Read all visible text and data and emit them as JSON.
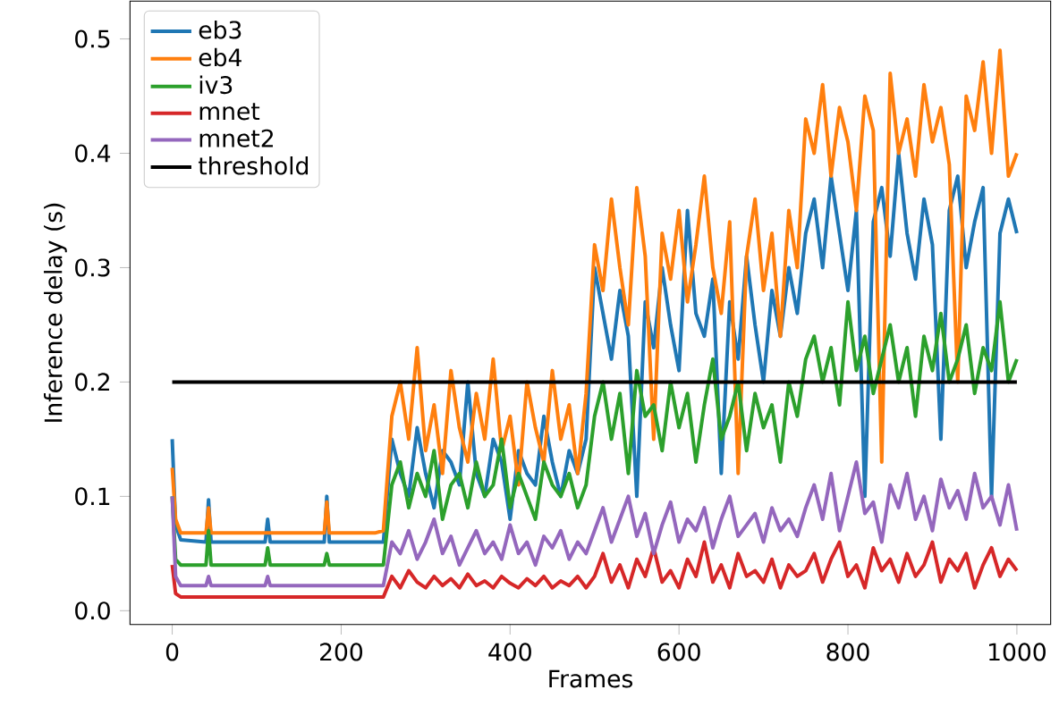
{
  "chart_data": {
    "type": "line",
    "xlabel": "Frames",
    "ylabel": "Inference delay (s)",
    "xlim": [
      -50,
      1040
    ],
    "ylim": [
      -0.012,
      0.533
    ],
    "xticks": [
      0,
      200,
      400,
      600,
      800,
      1000
    ],
    "yticks": [
      {
        "value": 0,
        "label": "0.0"
      },
      {
        "value": 0.1,
        "label": "0.1"
      },
      {
        "value": 0.2,
        "label": "0.2"
      },
      {
        "value": 0.3,
        "label": "0.3"
      },
      {
        "value": 0.4,
        "label": "0.4"
      },
      {
        "value": 0.5,
        "label": "0.5"
      }
    ],
    "legend": "top left",
    "grid": false,
    "line_style": "solid",
    "marker": "none",
    "x": [
      0,
      4,
      10,
      40,
      43,
      46,
      110,
      113,
      116,
      180,
      183,
      186,
      240,
      250,
      260,
      270,
      280,
      290,
      300,
      310,
      320,
      330,
      340,
      350,
      360,
      370,
      380,
      390,
      400,
      410,
      420,
      430,
      440,
      450,
      460,
      470,
      480,
      490,
      500,
      510,
      520,
      530,
      540,
      550,
      560,
      570,
      580,
      590,
      600,
      610,
      620,
      630,
      640,
      650,
      660,
      670,
      680,
      690,
      700,
      710,
      720,
      730,
      740,
      750,
      760,
      770,
      780,
      790,
      800,
      810,
      820,
      830,
      840,
      850,
      860,
      870,
      880,
      890,
      900,
      910,
      920,
      930,
      940,
      950,
      960,
      970,
      980,
      990,
      1000
    ],
    "series": [
      {
        "name": "eb3",
        "color": "#1f77b4",
        "values": [
          0.15,
          0.075,
          0.062,
          0.06,
          0.097,
          0.06,
          0.06,
          0.08,
          0.06,
          0.06,
          0.1,
          0.06,
          0.06,
          0.06,
          0.15,
          0.12,
          0.1,
          0.16,
          0.12,
          0.09,
          0.14,
          0.13,
          0.11,
          0.2,
          0.12,
          0.1,
          0.15,
          0.13,
          0.08,
          0.14,
          0.12,
          0.11,
          0.17,
          0.13,
          0.1,
          0.14,
          0.12,
          0.15,
          0.3,
          0.26,
          0.22,
          0.28,
          0.24,
          0.1,
          0.27,
          0.23,
          0.3,
          0.25,
          0.21,
          0.35,
          0.26,
          0.24,
          0.29,
          0.12,
          0.27,
          0.22,
          0.31,
          0.25,
          0.2,
          0.28,
          0.24,
          0.3,
          0.26,
          0.33,
          0.36,
          0.3,
          0.38,
          0.33,
          0.28,
          0.35,
          0.1,
          0.34,
          0.37,
          0.31,
          0.4,
          0.33,
          0.29,
          0.36,
          0.32,
          0.15,
          0.35,
          0.38,
          0.3,
          0.34,
          0.37,
          0.1,
          0.33,
          0.36,
          0.33
        ]
      },
      {
        "name": "eb4",
        "color": "#ff7f0e",
        "values": [
          0.125,
          0.08,
          0.068,
          0.068,
          0.09,
          0.068,
          0.068,
          0.068,
          0.068,
          0.068,
          0.095,
          0.068,
          0.068,
          0.07,
          0.17,
          0.2,
          0.15,
          0.23,
          0.14,
          0.18,
          0.12,
          0.21,
          0.16,
          0.13,
          0.19,
          0.15,
          0.22,
          0.14,
          0.17,
          0.11,
          0.2,
          0.16,
          0.13,
          0.21,
          0.15,
          0.18,
          0.12,
          0.19,
          0.32,
          0.28,
          0.36,
          0.3,
          0.25,
          0.37,
          0.31,
          0.15,
          0.33,
          0.29,
          0.35,
          0.27,
          0.32,
          0.38,
          0.3,
          0.26,
          0.34,
          0.12,
          0.31,
          0.36,
          0.28,
          0.33,
          0.24,
          0.35,
          0.3,
          0.43,
          0.4,
          0.46,
          0.38,
          0.44,
          0.41,
          0.35,
          0.45,
          0.42,
          0.13,
          0.47,
          0.4,
          0.43,
          0.38,
          0.46,
          0.41,
          0.44,
          0.39,
          0.2,
          0.45,
          0.42,
          0.48,
          0.4,
          0.49,
          0.38,
          0.4
        ]
      },
      {
        "name": "iv3",
        "color": "#2ca02c",
        "values": [
          0.1,
          0.045,
          0.04,
          0.04,
          0.07,
          0.04,
          0.04,
          0.055,
          0.04,
          0.04,
          0.05,
          0.04,
          0.04,
          0.04,
          0.11,
          0.13,
          0.09,
          0.12,
          0.1,
          0.14,
          0.08,
          0.11,
          0.12,
          0.09,
          0.13,
          0.1,
          0.11,
          0.15,
          0.09,
          0.12,
          0.1,
          0.08,
          0.13,
          0.11,
          0.1,
          0.12,
          0.09,
          0.11,
          0.17,
          0.2,
          0.15,
          0.19,
          0.12,
          0.21,
          0.17,
          0.18,
          0.14,
          0.2,
          0.16,
          0.19,
          0.13,
          0.18,
          0.22,
          0.15,
          0.17,
          0.2,
          0.14,
          0.19,
          0.16,
          0.18,
          0.13,
          0.2,
          0.17,
          0.22,
          0.24,
          0.2,
          0.23,
          0.18,
          0.27,
          0.21,
          0.24,
          0.19,
          0.22,
          0.25,
          0.2,
          0.23,
          0.17,
          0.24,
          0.21,
          0.26,
          0.2,
          0.22,
          0.25,
          0.19,
          0.23,
          0.21,
          0.27,
          0.2,
          0.22
        ]
      },
      {
        "name": "mnet",
        "color": "#d62728",
        "values": [
          0.04,
          0.015,
          0.012,
          0.012,
          0.012,
          0.012,
          0.012,
          0.012,
          0.012,
          0.012,
          0.012,
          0.012,
          0.012,
          0.012,
          0.03,
          0.02,
          0.035,
          0.025,
          0.02,
          0.03,
          0.022,
          0.028,
          0.02,
          0.032,
          0.022,
          0.026,
          0.02,
          0.03,
          0.024,
          0.02,
          0.028,
          0.022,
          0.03,
          0.02,
          0.026,
          0.022,
          0.03,
          0.02,
          0.03,
          0.05,
          0.025,
          0.04,
          0.02,
          0.045,
          0.03,
          0.055,
          0.025,
          0.035,
          0.02,
          0.045,
          0.03,
          0.06,
          0.025,
          0.04,
          0.02,
          0.05,
          0.03,
          0.035,
          0.025,
          0.045,
          0.02,
          0.04,
          0.03,
          0.035,
          0.05,
          0.025,
          0.045,
          0.06,
          0.03,
          0.04,
          0.02,
          0.055,
          0.035,
          0.045,
          0.025,
          0.05,
          0.03,
          0.04,
          0.06,
          0.025,
          0.045,
          0.035,
          0.05,
          0.02,
          0.04,
          0.055,
          0.03,
          0.045,
          0.035
        ]
      },
      {
        "name": "mnet2",
        "color": "#9467bd",
        "values": [
          0.1,
          0.03,
          0.022,
          0.022,
          0.03,
          0.022,
          0.022,
          0.03,
          0.022,
          0.022,
          0.022,
          0.022,
          0.022,
          0.022,
          0.06,
          0.05,
          0.07,
          0.045,
          0.06,
          0.08,
          0.05,
          0.065,
          0.04,
          0.055,
          0.07,
          0.05,
          0.06,
          0.045,
          0.075,
          0.05,
          0.06,
          0.04,
          0.065,
          0.055,
          0.07,
          0.045,
          0.06,
          0.05,
          0.07,
          0.09,
          0.06,
          0.08,
          0.1,
          0.065,
          0.085,
          0.05,
          0.075,
          0.095,
          0.06,
          0.08,
          0.07,
          0.09,
          0.055,
          0.08,
          0.1,
          0.065,
          0.075,
          0.085,
          0.06,
          0.09,
          0.07,
          0.08,
          0.065,
          0.09,
          0.11,
          0.08,
          0.12,
          0.07,
          0.1,
          0.13,
          0.085,
          0.095,
          0.06,
          0.11,
          0.09,
          0.12,
          0.08,
          0.1,
          0.07,
          0.115,
          0.09,
          0.105,
          0.08,
          0.12,
          0.09,
          0.1,
          0.075,
          0.11,
          0.07
        ]
      },
      {
        "name": "threshold",
        "color": "#000000",
        "x": [
          0,
          1000
        ],
        "values": [
          0.2,
          0.2
        ]
      }
    ]
  }
}
